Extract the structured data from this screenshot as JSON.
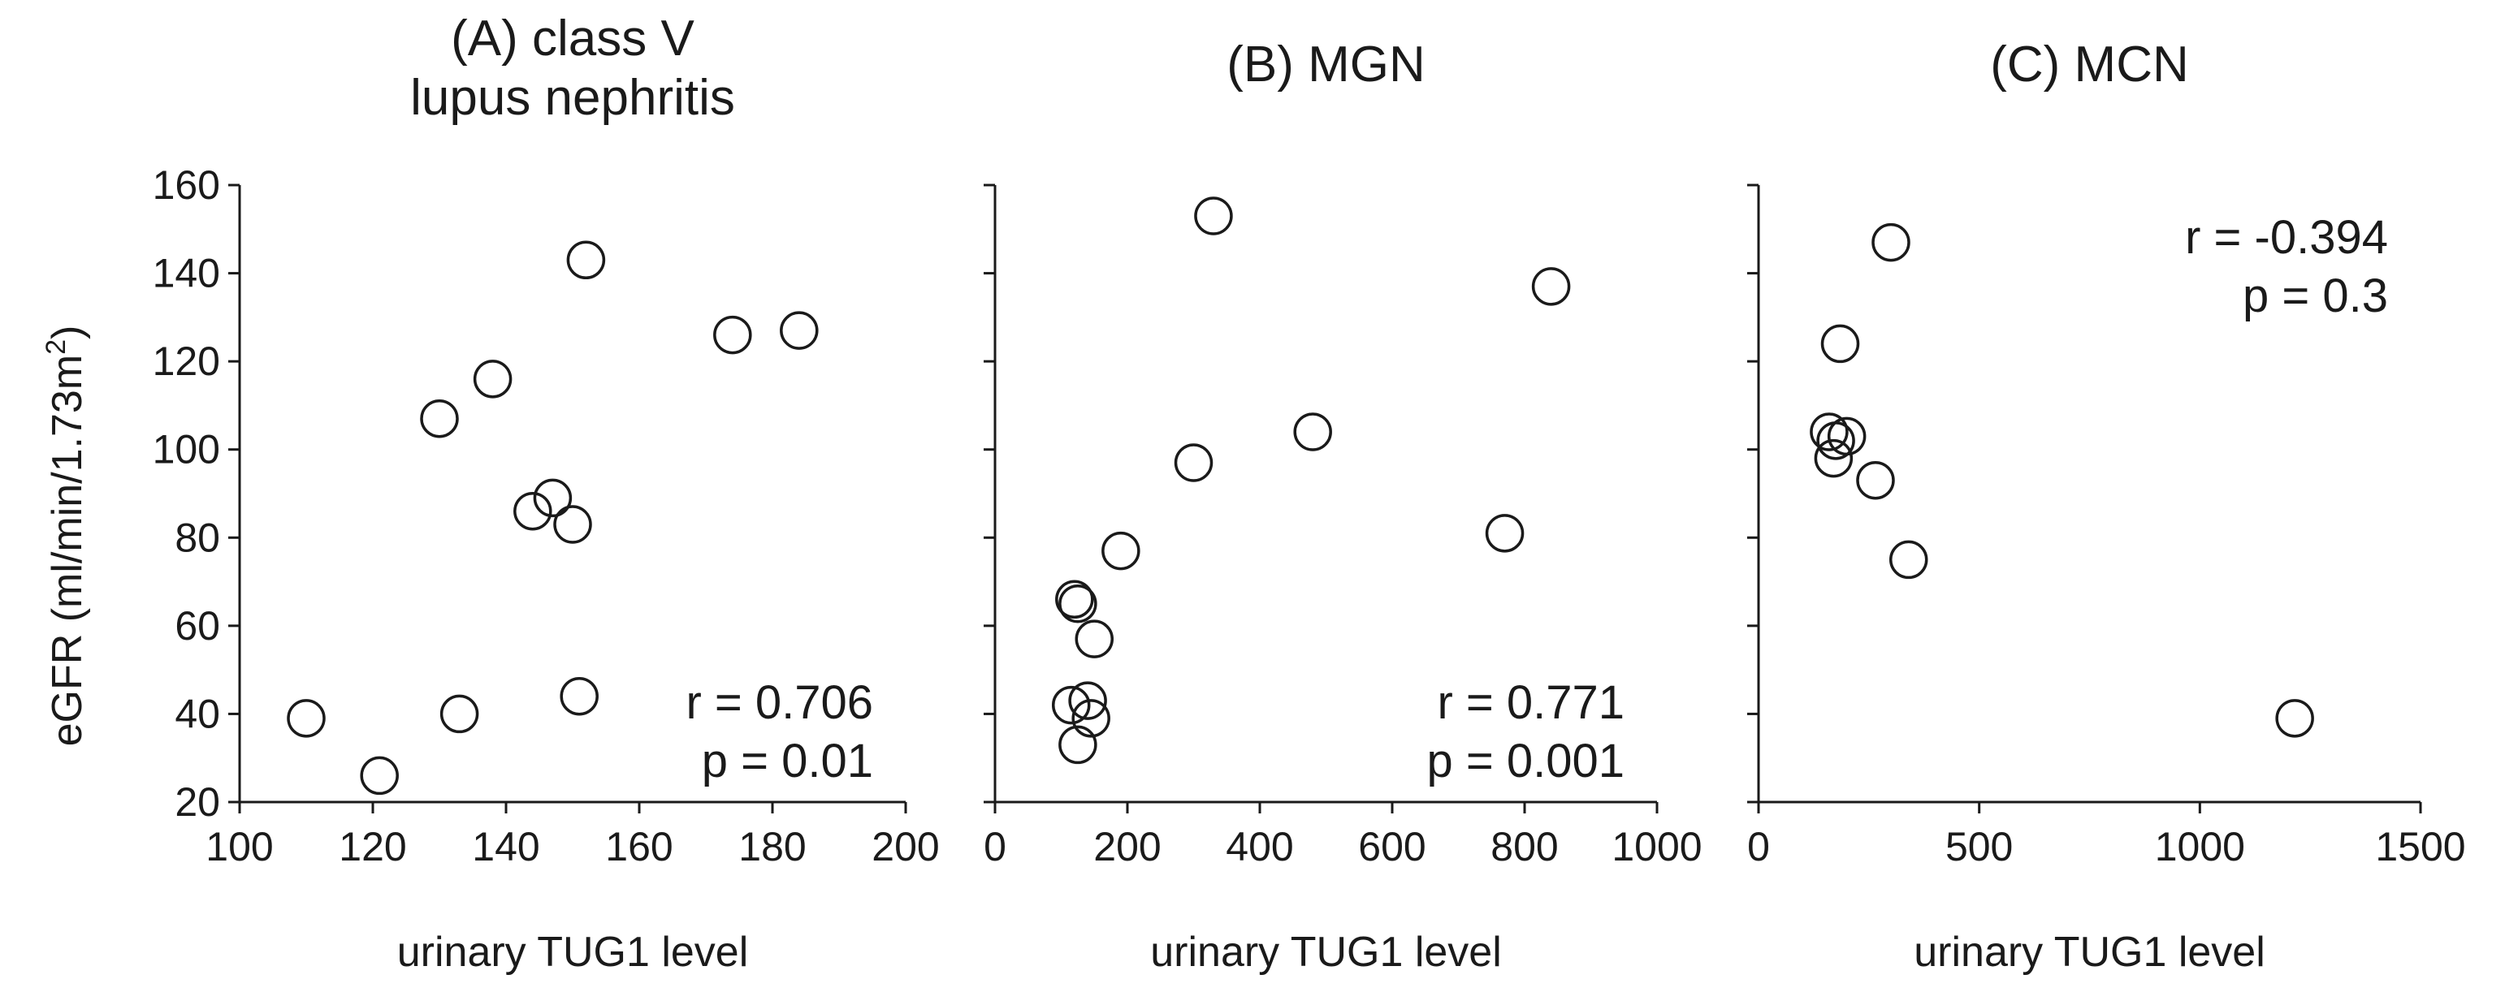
{
  "figure": {
    "ylabel_main": "eGFR (ml/min/1.73m",
    "ylabel_sup": "2",
    "ylabel_close": ")"
  },
  "chart_data": [
    {
      "type": "scatter",
      "title_lines": [
        "(A) class V",
        "lupus nephritis"
      ],
      "xlabel": "urinary TUG1 level",
      "ylabel": "eGFR (ml/min/1.73m2)",
      "xlim": [
        100,
        200
      ],
      "ylim": [
        20,
        160
      ],
      "xticks": [
        100,
        120,
        140,
        160,
        180,
        200
      ],
      "yticks": [
        20,
        40,
        60,
        80,
        100,
        120,
        140,
        160
      ],
      "x": [
        110,
        121,
        130,
        133,
        138,
        144,
        147,
        150,
        151,
        152,
        174,
        184
      ],
      "y": [
        39,
        26,
        107,
        40,
        116,
        86,
        89,
        83,
        44,
        143,
        126,
        127
      ],
      "stats": [
        "r = 0.706",
        "p = 0.01"
      ],
      "stats_position": "bottom-right",
      "show_ytick_labels": true
    },
    {
      "type": "scatter",
      "title_lines": [
        "(B) MGN"
      ],
      "xlabel": "urinary TUG1 level",
      "ylabel": "",
      "xlim": [
        0,
        1000
      ],
      "ylim": [
        20,
        160
      ],
      "xticks": [
        0,
        200,
        400,
        600,
        800,
        1000
      ],
      "yticks": [
        20,
        40,
        60,
        80,
        100,
        120,
        140,
        160
      ],
      "x": [
        120,
        125,
        115,
        150,
        140,
        145,
        125,
        190,
        300,
        330,
        480,
        770,
        840
      ],
      "y": [
        66,
        65,
        42,
        57,
        43,
        39,
        33,
        77,
        97,
        153,
        104,
        81,
        137
      ],
      "stats": [
        "r = 0.771",
        "p = 0.001"
      ],
      "stats_position": "bottom-right",
      "show_ytick_labels": false
    },
    {
      "type": "scatter",
      "title_lines": [
        "(C) MCN"
      ],
      "xlabel": "urinary TUG1 level",
      "ylabel": "",
      "xlim": [
        0,
        1500
      ],
      "ylim": [
        20,
        160
      ],
      "xticks": [
        0,
        500,
        1000,
        1500
      ],
      "yticks": [
        20,
        40,
        60,
        80,
        100,
        120,
        140,
        160
      ],
      "x": [
        300,
        185,
        160,
        200,
        175,
        170,
        265,
        340,
        1215
      ],
      "y": [
        147,
        124,
        104,
        103,
        102,
        98,
        93,
        75,
        39
      ],
      "stats": [
        "r = -0.394",
        "p = 0.3"
      ],
      "stats_position": "top-right",
      "show_ytick_labels": false
    }
  ]
}
